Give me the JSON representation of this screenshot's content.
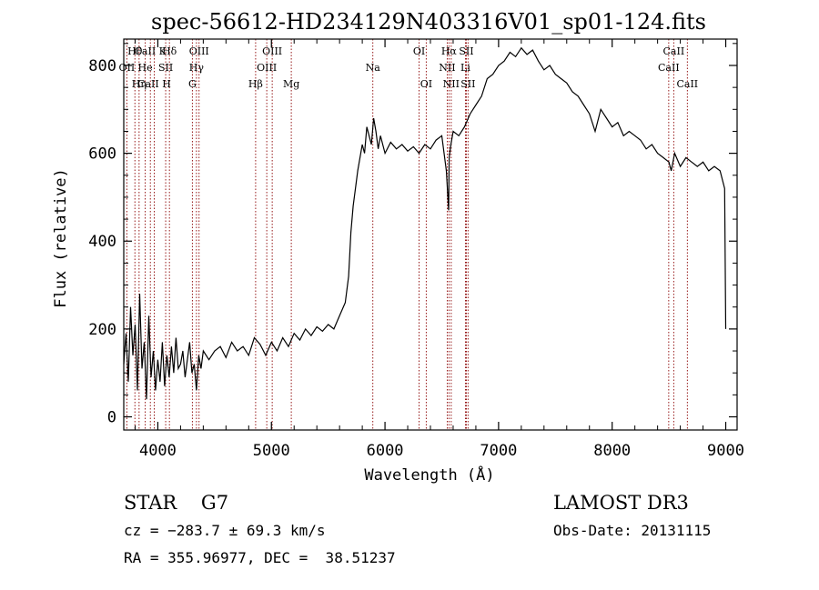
{
  "chart_data": {
    "type": "line",
    "title": "spec-56612-HD234129N403316V01_sp01-124.fits",
    "xlabel": "Wavelength (Å)",
    "ylabel": "Flux (relative)",
    "xlim": [
      3700,
      9100
    ],
    "ylim": [
      -30,
      860
    ],
    "xticks": [
      4000,
      5000,
      6000,
      7000,
      8000,
      9000
    ],
    "yticks": [
      0,
      200,
      400,
      600,
      800
    ],
    "grid": false,
    "series": [
      {
        "color": "#000000",
        "x": [
          3700,
          3720,
          3740,
          3760,
          3780,
          3800,
          3820,
          3840,
          3860,
          3880,
          3900,
          3920,
          3940,
          3960,
          3980,
          4000,
          4020,
          4040,
          4060,
          4080,
          4100,
          4120,
          4140,
          4160,
          4180,
          4200,
          4220,
          4240,
          4260,
          4280,
          4300,
          4320,
          4340,
          4360,
          4380,
          4400,
          4450,
          4500,
          4550,
          4600,
          4650,
          4700,
          4750,
          4800,
          4850,
          4900,
          4950,
          5000,
          5050,
          5100,
          5150,
          5200,
          5250,
          5300,
          5350,
          5400,
          5450,
          5500,
          5550,
          5600,
          5650,
          5680,
          5700,
          5720,
          5740,
          5760,
          5780,
          5800,
          5820,
          5840,
          5860,
          5880,
          5900,
          5920,
          5940,
          5960,
          5980,
          6000,
          6050,
          6100,
          6150,
          6200,
          6250,
          6300,
          6350,
          6400,
          6450,
          6500,
          6540,
          6560,
          6565,
          6570,
          6580,
          6600,
          6650,
          6700,
          6750,
          6800,
          6850,
          6900,
          6950,
          7000,
          7050,
          7100,
          7150,
          7200,
          7250,
          7300,
          7350,
          7400,
          7450,
          7500,
          7550,
          7600,
          7650,
          7700,
          7750,
          7800,
          7850,
          7900,
          7950,
          8000,
          8050,
          8100,
          8150,
          8200,
          8250,
          8300,
          8350,
          8400,
          8450,
          8500,
          8520,
          8550,
          8600,
          8650,
          8700,
          8750,
          8800,
          8850,
          8900,
          8950,
          8990,
          9000
        ],
        "y": [
          120,
          190,
          80,
          250,
          140,
          210,
          60,
          280,
          110,
          170,
          40,
          230,
          90,
          150,
          60,
          130,
          80,
          170,
          70,
          140,
          90,
          160,
          100,
          180,
          110,
          120,
          150,
          90,
          130,
          170,
          100,
          120,
          60,
          140,
          110,
          150,
          130,
          150,
          160,
          135,
          170,
          150,
          160,
          140,
          180,
          165,
          140,
          170,
          150,
          180,
          160,
          190,
          175,
          200,
          185,
          205,
          195,
          210,
          200,
          230,
          260,
          320,
          420,
          480,
          520,
          560,
          590,
          620,
          600,
          660,
          640,
          620,
          680,
          650,
          610,
          640,
          620,
          600,
          625,
          610,
          620,
          605,
          615,
          600,
          620,
          610,
          630,
          640,
          560,
          470,
          590,
          600,
          620,
          650,
          640,
          660,
          690,
          710,
          730,
          770,
          780,
          800,
          810,
          830,
          820,
          840,
          825,
          835,
          810,
          790,
          800,
          780,
          770,
          760,
          740,
          730,
          710,
          690,
          650,
          700,
          680,
          660,
          670,
          640,
          650,
          640,
          630,
          610,
          620,
          600,
          590,
          580,
          560,
          600,
          570,
          590,
          580,
          570,
          580,
          560,
          570,
          560,
          520,
          200
        ]
      }
    ],
    "line_markers": [
      {
        "name": "OII",
        "wavelength": 3727,
        "row": 1
      },
      {
        "name": "Hθ",
        "wavelength": 3798,
        "row": 0
      },
      {
        "name": "Hη",
        "wavelength": 3835,
        "row": 2
      },
      {
        "name": "CaII K",
        "wavelength": 3934,
        "row": 0
      },
      {
        "name": "CaII H",
        "wavelength": 3968,
        "row": 2
      },
      {
        "name": "He",
        "wavelength": 3889,
        "row": 1
      },
      {
        "name": "SII",
        "wavelength": 4069,
        "row": 1
      },
      {
        "name": "Hδ",
        "wavelength": 4102,
        "row": 0
      },
      {
        "name": "G",
        "wavelength": 4304,
        "row": 2
      },
      {
        "name": "Hγ",
        "wavelength": 4340,
        "row": 1
      },
      {
        "name": "OIII",
        "wavelength": 4363,
        "row": 0
      },
      {
        "name": "Hβ",
        "wavelength": 4861,
        "row": 2
      },
      {
        "name": "OIII",
        "wavelength": 4959,
        "row": 1
      },
      {
        "name": "OIII",
        "wavelength": 5007,
        "row": 0
      },
      {
        "name": "Mg",
        "wavelength": 5175,
        "row": 2
      },
      {
        "name": "Na",
        "wavelength": 5893,
        "row": 1
      },
      {
        "name": "OI",
        "wavelength": 6300,
        "row": 0
      },
      {
        "name": "OI",
        "wavelength": 6363,
        "row": 2
      },
      {
        "name": "NII",
        "wavelength": 6548,
        "row": 1
      },
      {
        "name": "Hα",
        "wavelength": 6563,
        "row": 0
      },
      {
        "name": "NII",
        "wavelength": 6583,
        "row": 2
      },
      {
        "name": "Li",
        "wavelength": 6708,
        "row": 1
      },
      {
        "name": "SII",
        "wavelength": 6716,
        "row": 0
      },
      {
        "name": "SII",
        "wavelength": 6731,
        "row": 2
      },
      {
        "name": "CaII",
        "wavelength": 8498,
        "row": 1
      },
      {
        "name": "CaII",
        "wavelength": 8542,
        "row": 0
      },
      {
        "name": "CaII",
        "wavelength": 8662,
        "row": 2
      }
    ],
    "marker_color": "#8b0000"
  },
  "info": {
    "class_line": "STAR    G7",
    "survey": "LAMOST DR3",
    "redshift": "cz = −283.7 ± 69.3 km/s",
    "obs_date": "Obs-Date: 20131115",
    "coords": "RA = 355.96977, DEC =  38.51237"
  }
}
